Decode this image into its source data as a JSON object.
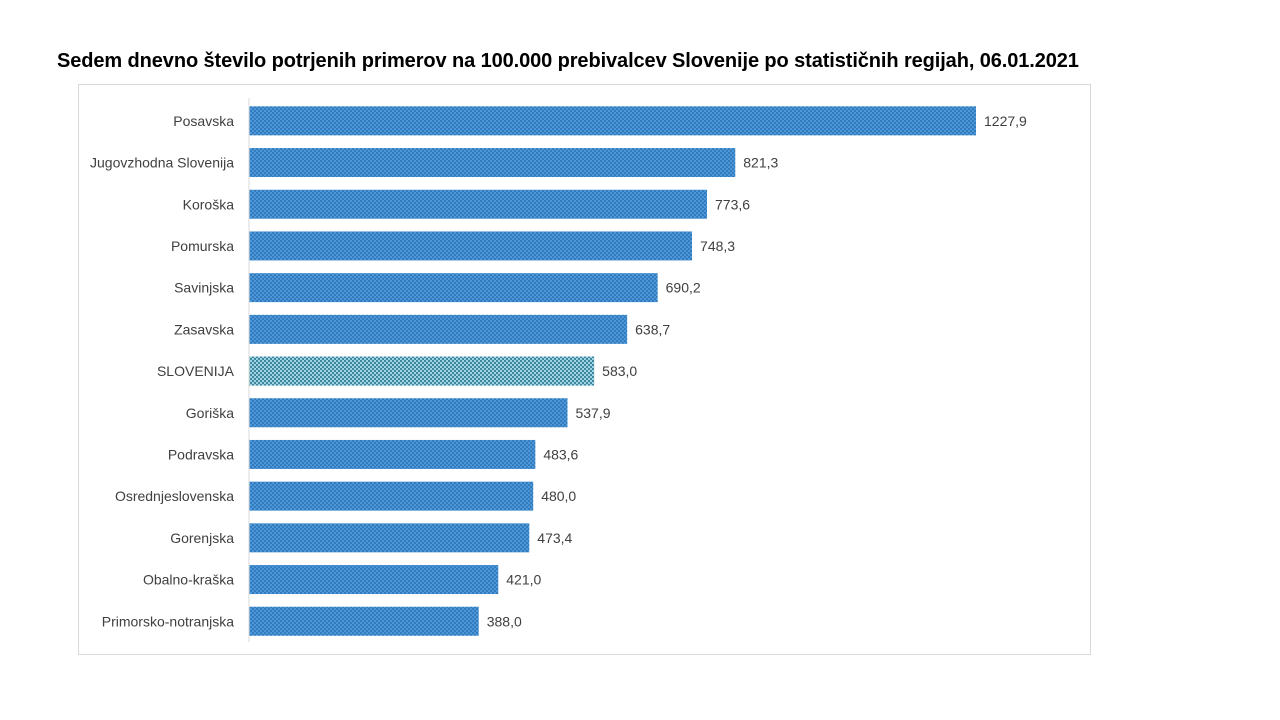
{
  "chart_data": {
    "type": "bar",
    "orientation": "horizontal",
    "title": "Sedem dnevno število potrjenih primerov na 100.000  prebivalcev Slovenije po statističnih regijah, 06.01.2021",
    "categories": [
      "Posavska",
      "Jugovzhodna Slovenija",
      "Koroška",
      "Pomurska",
      "Savinjska",
      "Zasavska",
      "SLOVENIJA",
      "Goriška",
      "Podravska",
      "Osrednjeslovenska",
      "Gorenjska",
      "Obalno-kraška",
      "Primorsko-notranjska"
    ],
    "values": [
      1227.9,
      821.3,
      773.6,
      748.3,
      690.2,
      638.7,
      583.0,
      537.9,
      483.6,
      480.0,
      473.4,
      421.0,
      388.0
    ],
    "value_labels": [
      "1227,9",
      "821,3",
      "773,6",
      "748,3",
      "690,2",
      "638,7",
      "583,0",
      "537,9",
      "483,6",
      "480,0",
      "473,4",
      "421,0",
      "388,0"
    ],
    "highlight_category": "SLOVENIJA",
    "xlim": [
      0,
      1400
    ],
    "grid": false,
    "legend": "none",
    "colors": {
      "bar": "#3f8fd4",
      "bar_pattern": "#2a6fb0",
      "highlight_bar": "#5ab0c8",
      "highlight_pattern": "#1e6e8a",
      "axis": "#d9d9d9",
      "text": "#404040"
    }
  }
}
